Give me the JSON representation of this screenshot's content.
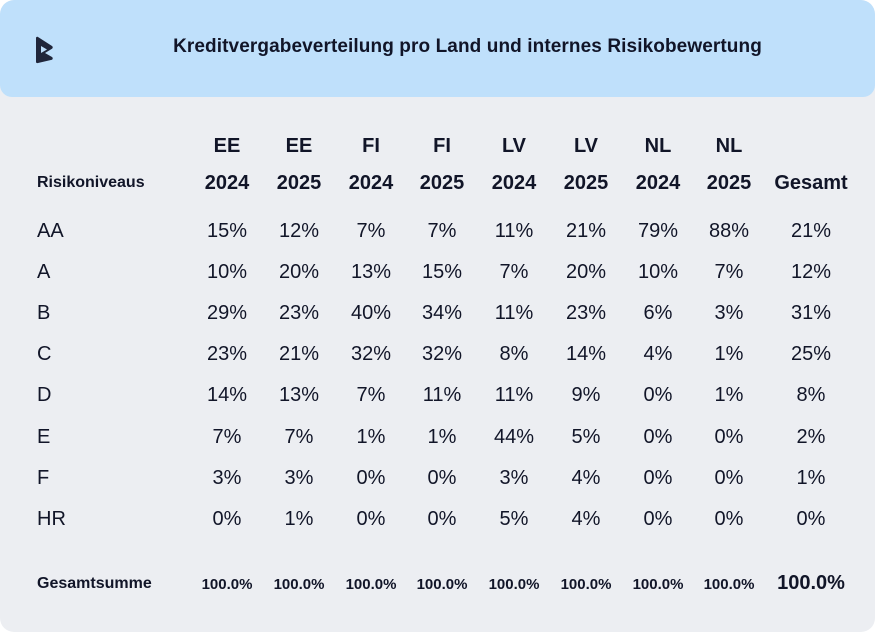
{
  "header": {
    "title": "Kreditvergabeverteilung pro Land und internes Risikobewertung",
    "logo_icon": "brand-logo-icon"
  },
  "colors": {
    "header_bg": "#bfe0fb",
    "card_bg": "#eceef2",
    "text": "#111528"
  },
  "chart_data": {
    "type": "table",
    "title": "Kreditvergabeverteilung pro Land und internes Risikobewertung",
    "row_header_label": "Risikoniveaus",
    "columns": [
      {
        "country": "EE",
        "year": "2024"
      },
      {
        "country": "EE",
        "year": "2025"
      },
      {
        "country": "FI",
        "year": "2024"
      },
      {
        "country": "FI",
        "year": "2025"
      },
      {
        "country": "LV",
        "year": "2024"
      },
      {
        "country": "LV",
        "year": "2025"
      },
      {
        "country": "NL",
        "year": "2024"
      },
      {
        "country": "NL",
        "year": "2025"
      },
      {
        "country": "",
        "year": "Gesamt"
      }
    ],
    "rows": [
      {
        "label": "AA",
        "values": [
          "15%",
          "12%",
          "7%",
          "7%",
          "11%",
          "21%",
          "79%",
          "88%",
          "21%"
        ]
      },
      {
        "label": "A",
        "values": [
          "10%",
          "20%",
          "13%",
          "15%",
          "7%",
          "20%",
          "10%",
          "7%",
          "12%"
        ]
      },
      {
        "label": "B",
        "values": [
          "29%",
          "23%",
          "40%",
          "34%",
          "11%",
          "23%",
          "6%",
          "3%",
          "31%"
        ]
      },
      {
        "label": "C",
        "values": [
          "23%",
          "21%",
          "32%",
          "32%",
          "8%",
          "14%",
          "4%",
          "1%",
          "25%"
        ]
      },
      {
        "label": "D",
        "values": [
          "14%",
          "13%",
          "7%",
          "11%",
          "11%",
          "9%",
          "0%",
          "1%",
          "8%"
        ]
      },
      {
        "label": "E",
        "values": [
          "7%",
          "7%",
          "1%",
          "1%",
          "44%",
          "5%",
          "0%",
          "0%",
          "2%"
        ]
      },
      {
        "label": "F",
        "values": [
          "3%",
          "3%",
          "0%",
          "0%",
          "3%",
          "4%",
          "0%",
          "0%",
          "1%"
        ]
      },
      {
        "label": "HR",
        "values": [
          "0%",
          "1%",
          "0%",
          "0%",
          "5%",
          "4%",
          "0%",
          "0%",
          "0%"
        ]
      }
    ],
    "total_row": {
      "label": "Gesamtsumme",
      "values": [
        "100.0%",
        "100.0%",
        "100.0%",
        "100.0%",
        "100.0%",
        "100.0%",
        "100.0%",
        "100.0%",
        "100.0%"
      ]
    }
  }
}
